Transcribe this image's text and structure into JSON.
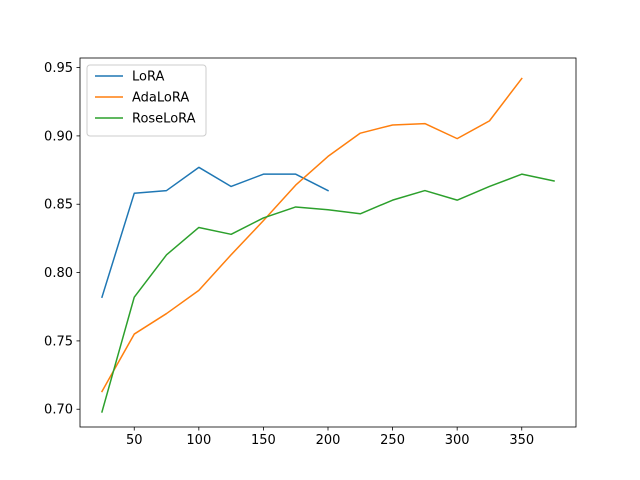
{
  "chart_data": {
    "type": "line",
    "title": "",
    "xlabel": "",
    "ylabel": "",
    "xlim": [
      8,
      392
    ],
    "ylim": [
      0.687,
      0.957
    ],
    "x_ticks": [
      50,
      100,
      150,
      200,
      250,
      300,
      350
    ],
    "y_ticks": [
      0.7,
      0.75,
      0.8,
      0.85,
      0.9,
      0.95
    ],
    "grid": false,
    "legend_position": "top-left",
    "series": [
      {
        "name": "LoRA",
        "color": "#1f77b4",
        "x": [
          25,
          50,
          75,
          100,
          125,
          150,
          175,
          200
        ],
        "y": [
          0.782,
          0.858,
          0.86,
          0.877,
          0.863,
          0.872,
          0.872,
          0.86
        ]
      },
      {
        "name": "AdaLoRA",
        "color": "#ff7f0e",
        "x": [
          25,
          50,
          75,
          100,
          125,
          150,
          175,
          200,
          225,
          250,
          275,
          300,
          325,
          350
        ],
        "y": [
          0.713,
          0.755,
          0.77,
          0.787,
          0.813,
          0.838,
          0.864,
          0.885,
          0.902,
          0.908,
          0.909,
          0.898,
          0.911,
          0.942
        ]
      },
      {
        "name": "RoseLoRA",
        "color": "#2ca02c",
        "x": [
          25,
          50,
          75,
          100,
          125,
          150,
          175,
          200,
          225,
          250,
          275,
          300,
          325,
          350,
          375
        ],
        "y": [
          0.698,
          0.782,
          0.813,
          0.833,
          0.828,
          0.84,
          0.848,
          0.846,
          0.843,
          0.853,
          0.86,
          0.853,
          0.863,
          0.872,
          0.867
        ]
      }
    ]
  }
}
